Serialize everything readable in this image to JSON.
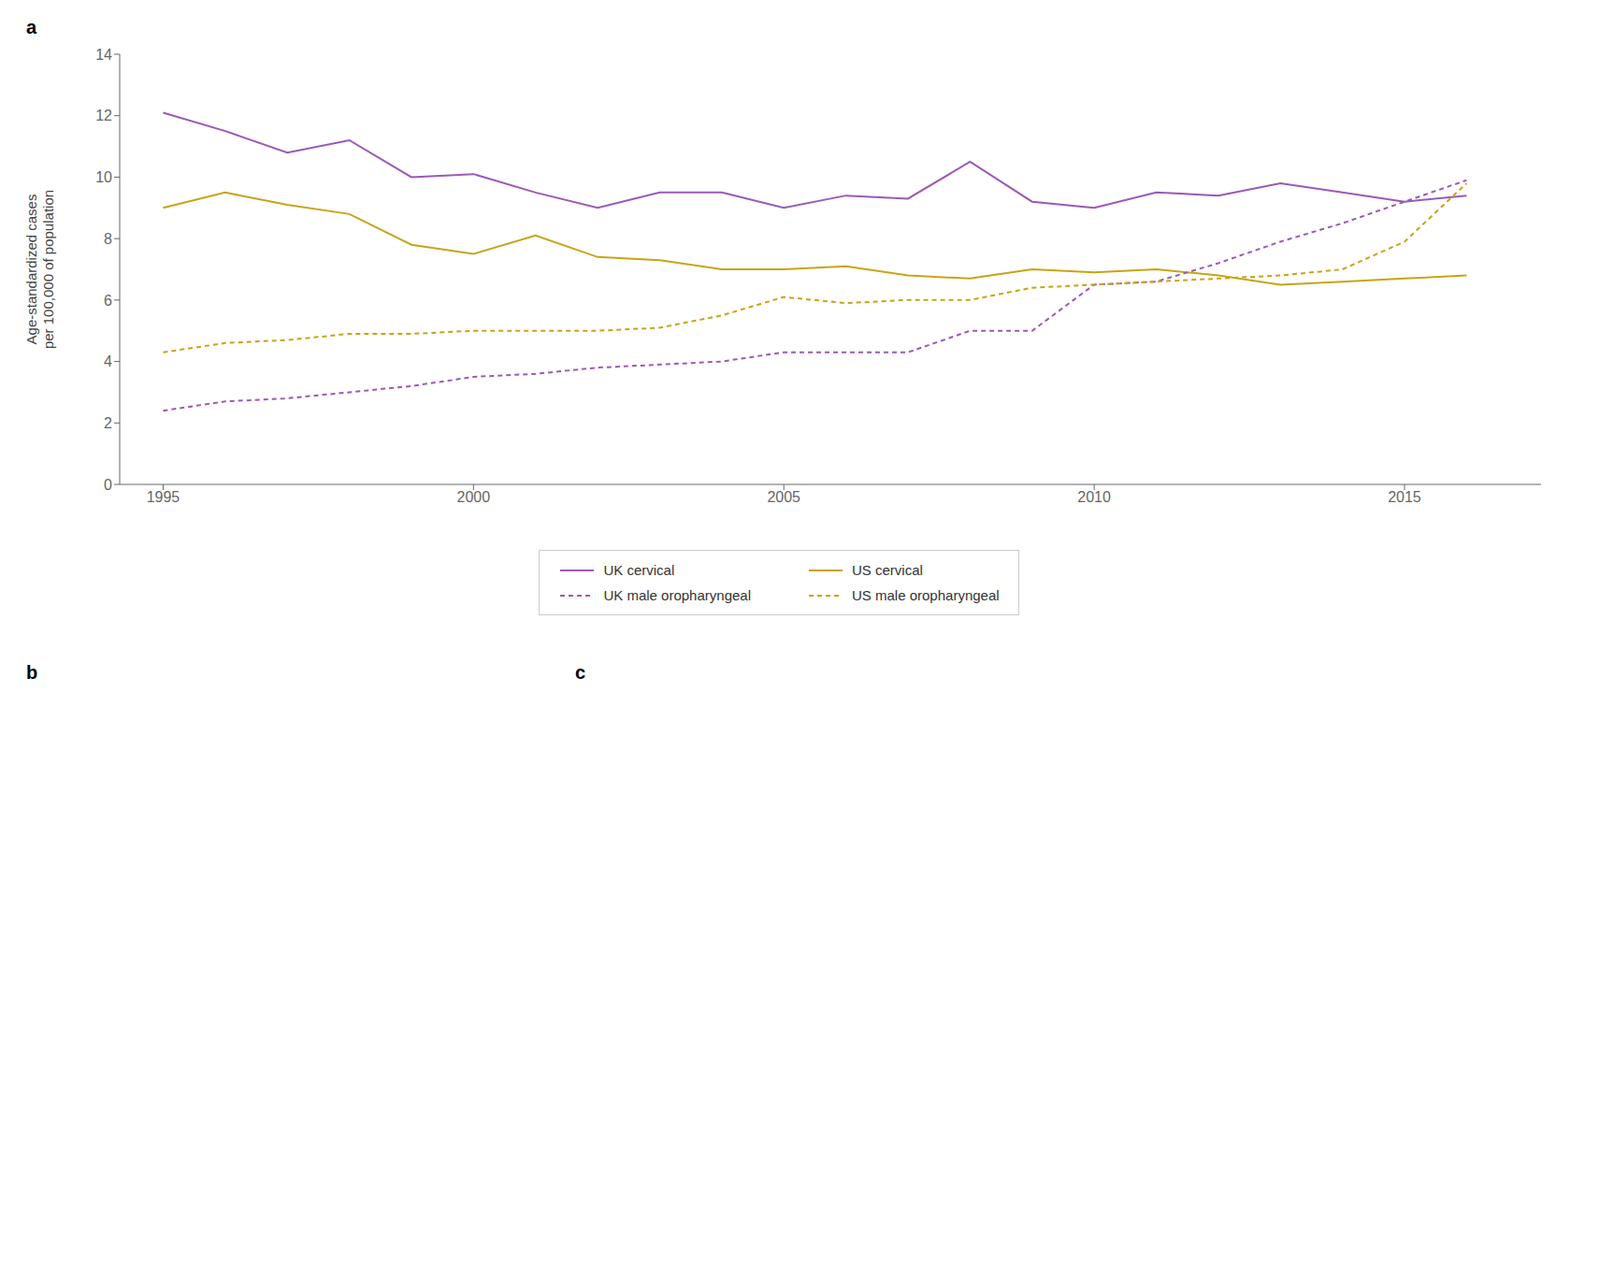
{
  "chart_data": {
    "type": "line",
    "x": [
      1995,
      1996,
      1997,
      1998,
      1999,
      2000,
      2001,
      2002,
      2003,
      2004,
      2005,
      2006,
      2007,
      2008,
      2009,
      2010,
      2011,
      2012,
      2013,
      2014,
      2015,
      2016
    ],
    "series": [
      {
        "name": "UK cervical",
        "color": "#9B59B6",
        "line_style": "solid",
        "values": [
          12.1,
          11.5,
          10.8,
          11.2,
          10.0,
          10.1,
          9.5,
          9.0,
          9.5,
          9.5,
          9.0,
          9.4,
          9.3,
          10.5,
          9.2,
          9.0,
          9.5,
          9.4,
          9.8,
          9.5,
          9.2,
          9.4
        ]
      },
      {
        "name": "US cervical",
        "color": "#C8A415",
        "line_style": "solid",
        "values": [
          9.0,
          9.5,
          9.1,
          8.8,
          7.8,
          7.5,
          8.1,
          7.4,
          7.3,
          7.0,
          7.0,
          7.1,
          6.8,
          6.7,
          7.0,
          6.9,
          7.0,
          6.8,
          6.5,
          6.6,
          6.7,
          6.8
        ]
      },
      {
        "name": "UK male oropharyngeal",
        "color": "#9B59B6",
        "line_style": "dashed",
        "values": [
          2.4,
          2.7,
          2.8,
          3.0,
          3.2,
          3.5,
          3.6,
          3.8,
          3.9,
          4.0,
          4.3,
          4.3,
          4.3,
          5.0,
          5.0,
          6.5,
          6.6,
          7.2,
          7.9,
          8.5,
          9.2,
          9.9
        ]
      },
      {
        "name": "US male oropharyngeal",
        "color": "#C8A415",
        "line_style": "dashed",
        "values": [
          4.3,
          4.6,
          4.7,
          4.9,
          4.9,
          5.0,
          5.0,
          5.0,
          5.1,
          5.5,
          6.1,
          5.9,
          6.0,
          6.0,
          6.4,
          6.5,
          6.6,
          6.7,
          6.8,
          7.0,
          7.9,
          9.8
        ]
      }
    ],
    "ylabel": "Age-standardized cases\nper 100,000 of population",
    "xlim": [
      1994.3,
      2017.2
    ],
    "xticks": [
      1995,
      2000,
      2005,
      2010,
      2015
    ],
    "ylim": [
      0,
      14
    ],
    "yticks": [
      0,
      2,
      4,
      6,
      8,
      10,
      12,
      14
    ],
    "grid": false,
    "legend": "bottom",
    "annotations": [
      "a",
      "b",
      "c"
    ]
  }
}
